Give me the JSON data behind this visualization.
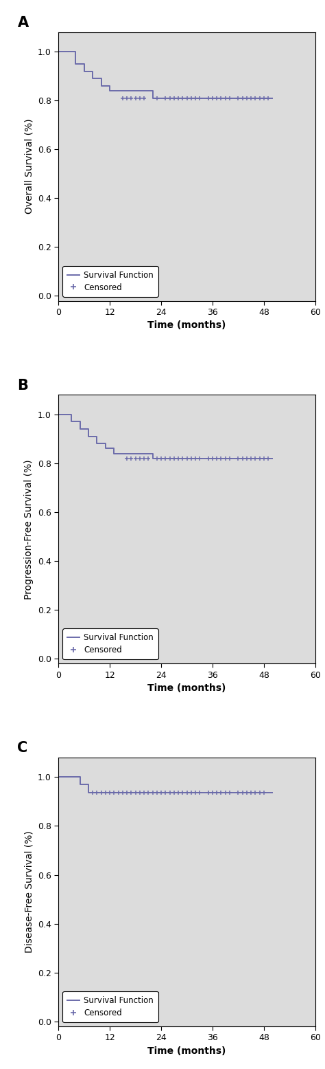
{
  "panels": [
    {
      "label": "A",
      "ylabel": "Overall Survival (%)",
      "curve_times": [
        0,
        4,
        6,
        8,
        10,
        12,
        14,
        22,
        24
      ],
      "curve_surv": [
        1.0,
        0.95,
        0.92,
        0.89,
        0.86,
        0.84,
        0.84,
        0.81,
        0.81
      ],
      "censored_times": [
        15,
        16,
        17,
        18,
        19,
        20,
        23,
        25,
        26,
        27,
        28,
        29,
        30,
        31,
        32,
        33,
        35,
        36,
        37,
        38,
        39,
        40,
        42,
        43,
        44,
        45,
        46,
        47,
        48,
        49
      ],
      "censored_surv": 0.81,
      "final_time": 50
    },
    {
      "label": "B",
      "ylabel": "Progression-Free Survival (%)",
      "curve_times": [
        0,
        3,
        5,
        7,
        9,
        11,
        13,
        15,
        22
      ],
      "curve_surv": [
        1.0,
        0.97,
        0.94,
        0.91,
        0.88,
        0.86,
        0.84,
        0.84,
        0.82
      ],
      "censored_times": [
        16,
        17,
        18,
        19,
        20,
        21,
        23,
        24,
        25,
        26,
        27,
        28,
        29,
        30,
        31,
        32,
        33,
        35,
        36,
        37,
        38,
        39,
        40,
        42,
        43,
        44,
        45,
        46,
        47,
        48,
        49
      ],
      "censored_surv": 0.82,
      "final_time": 50
    },
    {
      "label": "C",
      "ylabel": "Disease-Free Survival (%)",
      "curve_times": [
        0,
        3,
        5,
        7
      ],
      "curve_surv": [
        1.0,
        1.0,
        0.97,
        0.935
      ],
      "censored_times": [
        8,
        9,
        10,
        11,
        12,
        13,
        14,
        15,
        16,
        17,
        18,
        19,
        20,
        21,
        22,
        23,
        24,
        25,
        26,
        27,
        28,
        29,
        30,
        31,
        32,
        33,
        35,
        36,
        37,
        38,
        39,
        40,
        42,
        43,
        44,
        45,
        46,
        47,
        48
      ],
      "censored_surv": 0.935,
      "final_time": 50
    }
  ],
  "line_color": "#6b6baa",
  "bg_color": "#dcdcdc",
  "fig_bg_color": "#ffffff",
  "xlim": [
    0,
    60
  ],
  "xticks": [
    0,
    12,
    24,
    36,
    48,
    60
  ],
  "ylim": [
    -0.02,
    1.08
  ],
  "yticks": [
    0.0,
    0.2,
    0.4,
    0.6,
    0.8,
    1.0
  ],
  "xlabel": "Time (months)",
  "legend_loc": "lower left",
  "panel_label_fontsize": 15,
  "axis_label_fontsize": 10,
  "tick_fontsize": 9,
  "legend_fontsize": 8.5,
  "line_width": 1.4,
  "censored_marker": "+"
}
